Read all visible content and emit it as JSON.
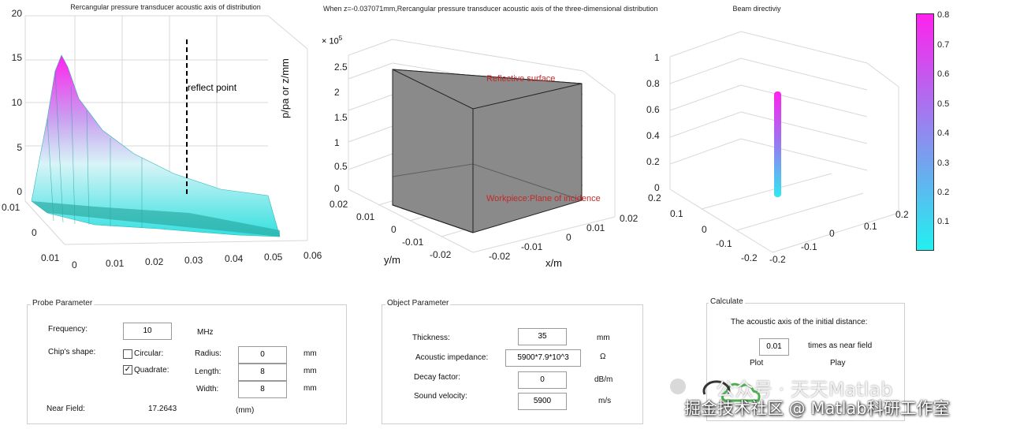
{
  "plots": {
    "left": {
      "title": "Rercangular pressure transducer acoustic axis of distribution",
      "z_ticks": [
        "20",
        "15",
        "10",
        "5",
        "0"
      ],
      "y_ticks": [
        "0.01",
        "0",
        "0.01"
      ],
      "x_ticks": [
        "0",
        "0.01",
        "0.02",
        "0.03",
        "0.04",
        "0.05",
        "0.06"
      ],
      "annotation": "reflect point"
    },
    "middle": {
      "title": "When z=-0.037071mm,Rercangular pressure transducer acoustic axis of the three-dimensional distribution",
      "exponent": "× 10",
      "exponent_power": "5",
      "z_ticks": [
        "2.5",
        "2",
        "1.5",
        "1",
        "0.5",
        "0"
      ],
      "y_ticks": [
        "0.02",
        "0.01",
        "0",
        "-0.01",
        "-0.02"
      ],
      "x_ticks": [
        "-0.02",
        "-0.01",
        "0",
        "0.01",
        "0.02"
      ],
      "zlabel": "p/pa or z/mm",
      "ylabel": "y/m",
      "xlabel": "x/m",
      "top_label": "Reflective surface",
      "bottom_label": "Workpiece:Plane of incidence"
    },
    "right": {
      "title": "Beam directiviy",
      "z_ticks": [
        "1",
        "0.8",
        "0.6",
        "0.4",
        "0.2",
        "0"
      ],
      "y_ticks": [
        "0.2",
        "0.1",
        "0",
        "-0.1",
        "-0.2"
      ],
      "x_ticks": [
        "-0.2",
        "-0.1",
        "0",
        "0.1",
        "0.2"
      ],
      "colorbar_ticks": [
        "0.8",
        "0.7",
        "0.6",
        "0.5",
        "0.4",
        "0.3",
        "0.2",
        "0.1"
      ]
    }
  },
  "probe": {
    "title": "Probe Parameter",
    "frequency_label": "Frequency:",
    "frequency_value": "10",
    "frequency_unit": "MHz",
    "shape_label": "Chip's shape:",
    "circular_label": "Circular:",
    "circular_checked": "",
    "quadrate_label": "Quadrate:",
    "quadrate_checked": "✓",
    "radius_label": "Radius:",
    "radius_value": "0",
    "radius_unit": "mm",
    "length_label": "Length:",
    "length_value": "8",
    "length_unit": "mm",
    "width_label": "Width:",
    "width_value": "8",
    "width_unit": "mm",
    "near_field_label": "Near Field:",
    "near_field_value": "17.2643",
    "near_field_unit": "(mm)"
  },
  "object": {
    "title": "Object Parameter",
    "thickness_label": "Thickness:",
    "thickness_value": "35",
    "thickness_unit": "mm",
    "impedance_label": "Acoustic impedance:",
    "impedance_value": "5900*7.9*10^3",
    "impedance_unit": "Ω",
    "decay_label": "Decay factor:",
    "decay_value": "0",
    "decay_unit": "dB/m",
    "velocity_label": "Sound velocity:",
    "velocity_value": "5900",
    "velocity_unit": "m/s"
  },
  "calculate": {
    "title": "Calculate",
    "desc": "The acoustic axis of the initial distance:",
    "distance_value": "0.01",
    "distance_unit": "times as near field",
    "plot_label": "Plot",
    "play_label": "Play"
  },
  "watermark": {
    "line1": "公众号 · 天天Matlab",
    "line2": "掘金技术社区 @ Matlab科研工作室"
  },
  "colors": {
    "surface_cyan": "#33e0e0",
    "surface_magenta": "#ff22ee",
    "box_gray": "#7f7f7f",
    "label_red": "#c62828"
  }
}
